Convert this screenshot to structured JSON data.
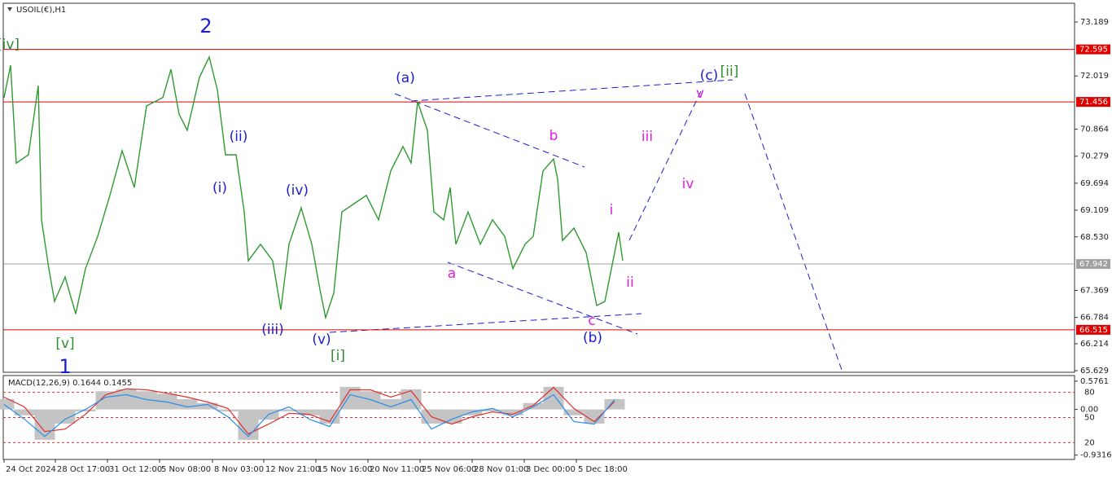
{
  "chart_data": [
    {
      "type": "line",
      "title": "USOIL(€),H1",
      "color": "#2f9a2f",
      "x": [
        0,
        8,
        15,
        30,
        42,
        46,
        55,
        62,
        75,
        88,
        100,
        115,
        130,
        145,
        160,
        175,
        195,
        205,
        215,
        225,
        240,
        252,
        262,
        272,
        285,
        295,
        300,
        315,
        330,
        340,
        350,
        365,
        378,
        388,
        395,
        405,
        415,
        430,
        445,
        460,
        475,
        490,
        500,
        508,
        520,
        528,
        540,
        548,
        555,
        570,
        585,
        600,
        615,
        625,
        640,
        650,
        662,
        675,
        680,
        686,
        700,
        715,
        728,
        738,
        748,
        755,
        760
      ],
      "values": [
        71.55,
        72.25,
        70.13,
        70.31,
        71.81,
        68.9,
        67.84,
        67.13,
        67.66,
        66.86,
        67.84,
        68.54,
        69.43,
        70.4,
        69.6,
        71.37,
        71.55,
        72.16,
        71.19,
        70.84,
        71.99,
        72.43,
        71.72,
        70.31,
        70.31,
        69.07,
        68.01,
        68.37,
        68.01,
        66.95,
        68.37,
        69.16,
        68.37,
        67.39,
        66.78,
        67.31,
        69.07,
        69.25,
        69.43,
        68.9,
        69.96,
        70.49,
        70.13,
        71.46,
        70.84,
        69.07,
        68.9,
        69.6,
        68.37,
        69.07,
        68.37,
        68.9,
        68.54,
        67.84,
        68.37,
        68.54,
        69.96,
        70.22,
        69.78,
        68.45,
        68.72,
        68.19,
        67.04,
        67.13,
        68.01,
        68.63,
        68.01
      ],
      "xlim": [
        -1,
        1315
      ],
      "ylim": [
        65.594,
        73.595
      ],
      "yticks": [
        73.189,
        72.019,
        70.864,
        70.279,
        69.694,
        69.109,
        {
          "value": 68.53,
          "label": "68.530"
        },
        67.369,
        66.784,
        66.214,
        65.629
      ],
      "levels": [
        {
          "value": 72.595,
          "color": "#e00000"
        },
        {
          "value": 71.456,
          "color": "#e00000"
        },
        {
          "value": 66.515,
          "color": "#e00000"
        },
        {
          "value": 67.942,
          "color": "#a0a0a0"
        }
      ],
      "annotations": [
        {
          "text": "2",
          "color": "#1c1cd0"
        },
        {
          "text": "[iv]",
          "color": "#2e8b2e"
        },
        {
          "text": "(ii)",
          "color": "#1c1cd0"
        },
        {
          "text": "(i)",
          "color": "#1c1cd0"
        },
        {
          "text": "(iv)",
          "color": "#1c1cd0"
        },
        {
          "text": "(iii)",
          "color": "#1c1cd0"
        },
        {
          "text": "(v)",
          "color": "#1c1cd0"
        },
        {
          "text": "[i]",
          "color": "#2e8b2e"
        },
        {
          "text": "[v]",
          "color": "#2e8b2e"
        },
        {
          "text": "1",
          "color": "#1c1cd0"
        },
        {
          "text": "(a)",
          "color": "#1c1cd0"
        },
        {
          "text": "b",
          "color": "#e020e0"
        },
        {
          "text": "a",
          "color": "#e020e0"
        },
        {
          "text": "c",
          "color": "#e020e0"
        },
        {
          "text": "(b)",
          "color": "#1c1cd0"
        },
        {
          "text": "i",
          "color": "#e020e0"
        },
        {
          "text": "ii",
          "color": "#e020e0"
        },
        {
          "text": "iii",
          "color": "#e020e0"
        },
        {
          "text": "iv",
          "color": "#e020e0"
        },
        {
          "text": "v",
          "color": "#e020e0"
        },
        {
          "text": "(c)",
          "color": "#1c1cd0"
        },
        {
          "text": "[ii]",
          "color": "#2e8b2e"
        }
      ]
    },
    {
      "type": "macd",
      "title": "MACD(12,26,9) 0.1644 0.1455",
      "x": [
        0,
        25,
        50,
        75,
        100,
        125,
        150,
        175,
        200,
        225,
        250,
        275,
        300,
        325,
        350,
        375,
        400,
        425,
        450,
        475,
        500,
        525,
        550,
        575,
        600,
        625,
        650,
        675,
        700,
        725,
        750
      ],
      "series": [
        {
          "color": "#c4c4c4",
          "style": "bar",
          "values": [
            0.21,
            -0.12,
            -0.62,
            -0.29,
            -0.04,
            0.37,
            0.41,
            0.37,
            0.32,
            0.21,
            0.13,
            -0.04,
            -0.62,
            -0.21,
            -0.04,
            -0.12,
            -0.29,
            0.46,
            0.37,
            0.21,
            0.41,
            -0.29,
            -0.29,
            -0.12,
            -0.04,
            -0.12,
            0.13,
            0.46,
            -0.12,
            -0.29,
            0.21
          ]
        },
        {
          "color": "#e03030",
          "style": "line",
          "values": [
            0.25,
            0.05,
            -0.45,
            -0.4,
            -0.1,
            0.3,
            0.42,
            0.4,
            0.33,
            0.25,
            0.15,
            0.02,
            -0.5,
            -0.3,
            -0.08,
            -0.1,
            -0.25,
            0.4,
            0.4,
            0.25,
            0.38,
            -0.15,
            -0.3,
            -0.15,
            -0.05,
            -0.1,
            0.08,
            0.45,
            0.02,
            -0.25,
            0.16
          ]
        },
        {
          "color": "#2a8ee8",
          "style": "line",
          "values": [
            0.1,
            -0.2,
            -0.55,
            -0.2,
            0.0,
            0.25,
            0.3,
            0.2,
            0.15,
            0.05,
            0.1,
            -0.15,
            -0.55,
            -0.1,
            0.05,
            -0.2,
            -0.35,
            0.3,
            0.2,
            0.05,
            0.2,
            -0.4,
            -0.2,
            -0.05,
            0.02,
            -0.15,
            0.05,
            0.3,
            -0.25,
            -0.3,
            0.2
          ]
        }
      ],
      "xlim": [
        -1,
        1315
      ],
      "ylim": [
        -1.02,
        0.69
      ],
      "yticks": [
        0.5761,
        {
          "value": 0,
          "label": "0.00"
        },
        -0.9316
      ],
      "y2lim": [
        0,
        100
      ],
      "y2ticks": [
        80,
        50,
        20
      ],
      "levels_color": "#e03030",
      "xticks": [
        {
          "value": 0,
          "label": "24 Oct 2024"
        },
        {
          "value": 63,
          "label": "28 Oct 17:00"
        },
        {
          "value": 127,
          "label": "31 Oct 12:00"
        },
        {
          "value": 191,
          "label": "5 Nov 08:00"
        },
        {
          "value": 256,
          "label": "8 Nov 03:00"
        },
        {
          "value": 319,
          "label": "12 Nov 21:00"
        },
        {
          "value": 383,
          "label": "15 Nov 16:00"
        },
        {
          "value": 447,
          "label": "20 Nov 11:00"
        },
        {
          "value": 511,
          "label": "25 Nov 06:00"
        },
        {
          "value": 575,
          "label": "28 Nov 01:00"
        },
        {
          "value": 639,
          "label": "3 Dec 00:00"
        },
        {
          "value": 703,
          "label": "5 Dec 18:00"
        }
      ]
    }
  ]
}
